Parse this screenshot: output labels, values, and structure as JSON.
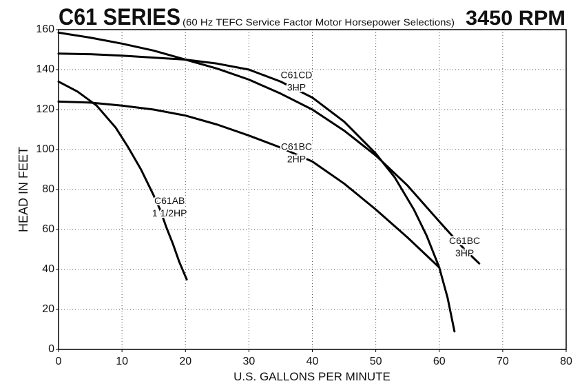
{
  "chart_data": {
    "type": "line",
    "title": "C61 SERIES",
    "subtitle": "(60 Hz TEFC Service Factor Motor Horsepower Selections)",
    "speed": "3450 RPM",
    "x_label": "U.S. GALLONS PER MINUTE",
    "y_label": "HEAD IN FEET",
    "xlim": [
      0,
      80
    ],
    "ylim": [
      0,
      160
    ],
    "xticks": [
      0,
      10,
      20,
      30,
      40,
      50,
      60,
      70,
      80
    ],
    "yticks": [
      0,
      20,
      40,
      60,
      80,
      100,
      120,
      140,
      160
    ],
    "grid": true,
    "series": [
      {
        "name": "C61AB",
        "rating": "1 1/2HP",
        "color": "#000000",
        "x": [
          0,
          3,
          6,
          9,
          11,
          13,
          15,
          16,
          17,
          18,
          19,
          20.2
        ],
        "values": [
          134,
          129,
          122,
          111,
          101,
          90,
          77,
          70,
          61,
          53,
          44,
          35
        ]
      },
      {
        "name": "C61BC",
        "rating": "2HP",
        "color": "#000000",
        "x": [
          0,
          5,
          10,
          15,
          20,
          25,
          30,
          35,
          40,
          45,
          50,
          55,
          60
        ],
        "values": [
          124,
          123.5,
          122,
          120,
          117,
          112.5,
          107,
          101,
          94,
          83,
          70,
          56,
          41
        ]
      },
      {
        "name": "C61CD",
        "rating": "3HP",
        "color": "#000000",
        "x": [
          0,
          5,
          10,
          15,
          20,
          25,
          30,
          35,
          40,
          45,
          50,
          53,
          56,
          58,
          60,
          61.3,
          62.4
        ],
        "values": [
          148,
          147.7,
          147,
          146,
          145,
          143,
          140,
          134,
          126,
          114,
          98,
          86,
          70,
          57,
          41,
          26,
          9
        ]
      },
      {
        "name": "C61BC",
        "rating": "3HP",
        "color": "#000000",
        "x": [
          0,
          5,
          10,
          15,
          20,
          25,
          30,
          35,
          40,
          45,
          50,
          55,
          60,
          62,
          64,
          66.3
        ],
        "values": [
          158.5,
          156,
          153,
          149.5,
          145,
          140.5,
          135,
          128,
          120,
          109.5,
          97,
          82,
          64,
          57,
          50,
          43
        ]
      }
    ]
  }
}
